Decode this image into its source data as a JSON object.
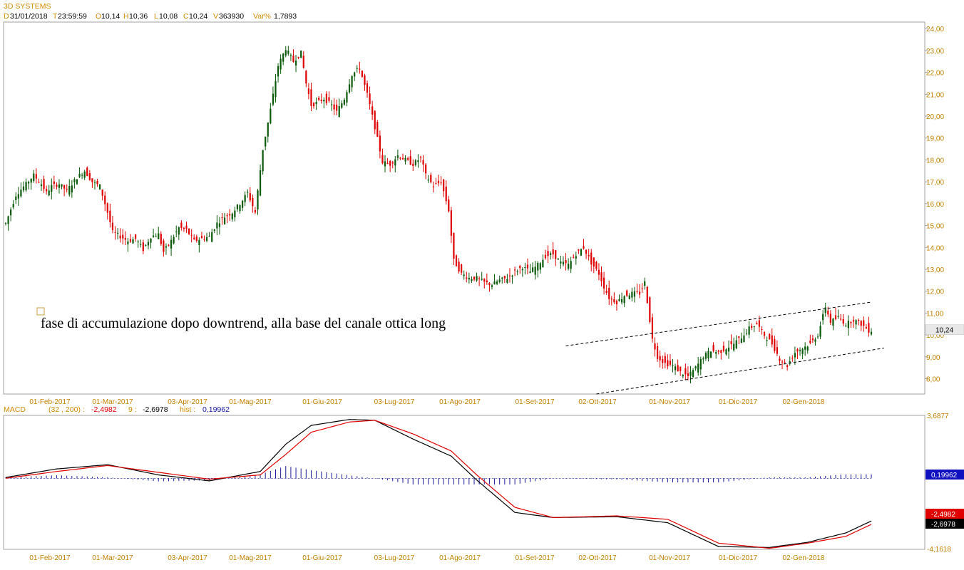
{
  "header": {
    "title": "3D SYSTEMS",
    "d_label": "D",
    "d_value": "31/01/2018",
    "t_label": "T",
    "t_value": "23:59:59",
    "o_label": "O",
    "o_value": "10,14",
    "h_label": "H",
    "h_value": "10,36",
    "l_label": "L",
    "l_value": "10,08",
    "c_label": "C",
    "c_value": "10,24",
    "v_label": "V",
    "v_value": "363930",
    "var_label": "Var%",
    "var_value": "1,7893"
  },
  "annotation": {
    "text": "fase di accumulazione dopo downtrend, alla base del canale ottica long"
  },
  "colors": {
    "bull": "#0a5a0a",
    "bear": "#e00000",
    "macd_line": "#000000",
    "signal_line": "#e00000",
    "hist": "#1a1a9a",
    "axis_text": "#c08000"
  },
  "chart_data": [
    {
      "type": "candlestick",
      "title": "3D SYSTEMS",
      "date_labels": [
        "01-Feb-2017",
        "01-Mar-2017",
        "03-Apr-2017",
        "01-Mag-2017",
        "01-Giu-2017",
        "03-Lug-2017",
        "01-Ago-2017",
        "01-Set-2017",
        "02-Ott-2017",
        "01-Nov-2017",
        "01-Dic-2017",
        "02-Gen-2018"
      ],
      "y_ticks": [
        "8,00",
        "9,00",
        "10,00",
        "11,00",
        "12,00",
        "13,00",
        "14,00",
        "15,00",
        "16,00",
        "17,00",
        "18,00",
        "19,00",
        "20,00",
        "21,00",
        "22,00",
        "23,00",
        "24,00"
      ],
      "ylim": [
        7.3,
        24.3
      ],
      "last_price_label": "10,24",
      "last_price": 10.24,
      "grid": false,
      "close_path": [
        [
          0,
          15.1
        ],
        [
          4,
          16.4
        ],
        [
          8,
          16.9
        ],
        [
          11,
          17.3
        ],
        [
          14,
          16.9
        ],
        [
          16,
          16.5
        ],
        [
          18,
          16.8
        ],
        [
          21,
          16.9
        ],
        [
          24,
          16.6
        ],
        [
          28,
          17.2
        ],
        [
          31,
          17.5
        ],
        [
          34,
          17.0
        ],
        [
          37,
          16.8
        ],
        [
          40,
          15.6
        ],
        [
          42,
          14.7
        ],
        [
          45,
          14.5
        ],
        [
          48,
          14.3
        ],
        [
          51,
          14.4
        ],
        [
          54,
          13.9
        ],
        [
          57,
          14.5
        ],
        [
          60,
          14.6
        ],
        [
          62,
          13.8
        ],
        [
          65,
          14.3
        ],
        [
          68,
          14.9
        ],
        [
          71,
          14.8
        ],
        [
          74,
          14.3
        ],
        [
          77,
          14.4
        ],
        [
          80,
          14.5
        ],
        [
          83,
          15.1
        ],
        [
          86,
          15.4
        ],
        [
          89,
          15.6
        ],
        [
          92,
          16.0
        ],
        [
          95,
          16.5
        ],
        [
          98,
          15.6
        ],
        [
          101,
          18.5
        ],
        [
          104,
          20.3
        ],
        [
          107,
          22.3
        ],
        [
          110,
          23.1
        ],
        [
          113,
          22.5
        ],
        [
          116,
          22.9
        ],
        [
          118,
          21.5
        ],
        [
          120,
          20.5
        ],
        [
          122,
          20.6
        ],
        [
          125,
          20.8
        ],
        [
          128,
          20.5
        ],
        [
          130,
          20.2
        ],
        [
          133,
          20.8
        ],
        [
          136,
          21.9
        ],
        [
          139,
          22.2
        ],
        [
          142,
          21.0
        ],
        [
          145,
          19.5
        ],
        [
          148,
          17.9
        ],
        [
          151,
          17.8
        ],
        [
          154,
          18.2
        ],
        [
          157,
          18.0
        ],
        [
          160,
          17.8
        ],
        [
          163,
          18.1
        ],
        [
          165,
          17.3
        ],
        [
          168,
          16.8
        ],
        [
          171,
          17.0
        ],
        [
          174,
          15.7
        ],
        [
          176,
          13.4
        ],
        [
          179,
          12.8
        ],
        [
          182,
          12.6
        ],
        [
          185,
          12.6
        ],
        [
          188,
          12.4
        ],
        [
          191,
          12.3
        ],
        [
          194,
          12.5
        ],
        [
          197,
          12.6
        ],
        [
          200,
          12.9
        ],
        [
          203,
          13.1
        ],
        [
          206,
          12.9
        ],
        [
          209,
          13.2
        ],
        [
          212,
          13.6
        ],
        [
          215,
          13.7
        ],
        [
          218,
          13.3
        ],
        [
          221,
          13.2
        ],
        [
          224,
          13.7
        ],
        [
          227,
          14.0
        ],
        [
          230,
          13.3
        ],
        [
          233,
          12.8
        ],
        [
          235,
          12.2
        ],
        [
          237,
          11.7
        ],
        [
          240,
          11.5
        ],
        [
          243,
          11.8
        ],
        [
          246,
          11.9
        ],
        [
          249,
          11.9
        ],
        [
          251,
          12.4
        ],
        [
          254,
          9.8
        ],
        [
          256,
          9.0
        ],
        [
          259,
          8.7
        ],
        [
          262,
          8.6
        ],
        [
          265,
          8.3
        ],
        [
          268,
          8.1
        ],
        [
          271,
          8.5
        ],
        [
          274,
          9.0
        ],
        [
          277,
          9.3
        ],
        [
          280,
          9.2
        ],
        [
          283,
          9.4
        ],
        [
          286,
          9.6
        ],
        [
          289,
          9.9
        ],
        [
          292,
          10.3
        ],
        [
          295,
          10.5
        ],
        [
          298,
          10.0
        ],
        [
          301,
          9.6
        ],
        [
          304,
          8.9
        ],
        [
          307,
          8.6
        ],
        [
          310,
          9.2
        ],
        [
          313,
          9.4
        ],
        [
          316,
          9.6
        ],
        [
          319,
          10.0
        ],
        [
          322,
          11.3
        ],
        [
          324,
          10.6
        ],
        [
          327,
          10.8
        ],
        [
          330,
          10.5
        ],
        [
          333,
          10.7
        ],
        [
          336,
          10.5
        ],
        [
          339,
          10.2
        ]
      ],
      "channel_upper": [
        [
          220,
          9.5
        ],
        [
          340,
          11.5
        ]
      ],
      "channel_lower": [
        [
          232,
          7.3
        ],
        [
          345,
          9.4
        ]
      ],
      "channel_style": "dashed"
    },
    {
      "type": "line",
      "title": "MACD",
      "params_label": "(32 , 200) :",
      "macd_value": "-2,4982",
      "signal_label": "9 :",
      "signal_value": "-2,6978",
      "hist_label": "hist :",
      "hist_value": "0,19962",
      "y_ticks": [
        "3,6877",
        "-4,1618"
      ],
      "right_labels": {
        "hist": "0,19962",
        "macd": "-2,4982",
        "signal": "-2,6978"
      },
      "ylim": [
        -4.1618,
        3.6877
      ],
      "series": [
        {
          "name": "MACD",
          "points": [
            [
              0,
              0.05
            ],
            [
              20,
              0.55
            ],
            [
              40,
              0.8
            ],
            [
              60,
              0.2
            ],
            [
              80,
              -0.15
            ],
            [
              100,
              0.4
            ],
            [
              110,
              2.0
            ],
            [
              120,
              3.1
            ],
            [
              135,
              3.45
            ],
            [
              145,
              3.4
            ],
            [
              160,
              2.3
            ],
            [
              175,
              1.3
            ],
            [
              185,
              -0.1
            ],
            [
              200,
              -2.0
            ],
            [
              215,
              -2.3
            ],
            [
              240,
              -2.25
            ],
            [
              260,
              -2.6
            ],
            [
              280,
              -4.0
            ],
            [
              300,
              -4.05
            ],
            [
              315,
              -3.75
            ],
            [
              330,
              -3.2
            ],
            [
              340,
              -2.5
            ]
          ]
        },
        {
          "name": "Signal",
          "points": [
            [
              0,
              0.0
            ],
            [
              20,
              0.4
            ],
            [
              40,
              0.75
            ],
            [
              60,
              0.35
            ],
            [
              80,
              -0.05
            ],
            [
              100,
              0.2
            ],
            [
              110,
              1.4
            ],
            [
              120,
              2.7
            ],
            [
              135,
              3.3
            ],
            [
              145,
              3.4
            ],
            [
              160,
              2.6
            ],
            [
              175,
              1.6
            ],
            [
              185,
              0.2
            ],
            [
              200,
              -1.7
            ],
            [
              215,
              -2.3
            ],
            [
              240,
              -2.2
            ],
            [
              260,
              -2.4
            ],
            [
              280,
              -3.8
            ],
            [
              300,
              -4.1
            ],
            [
              315,
              -3.8
            ],
            [
              330,
              -3.4
            ],
            [
              340,
              -2.7
            ]
          ]
        }
      ]
    }
  ]
}
